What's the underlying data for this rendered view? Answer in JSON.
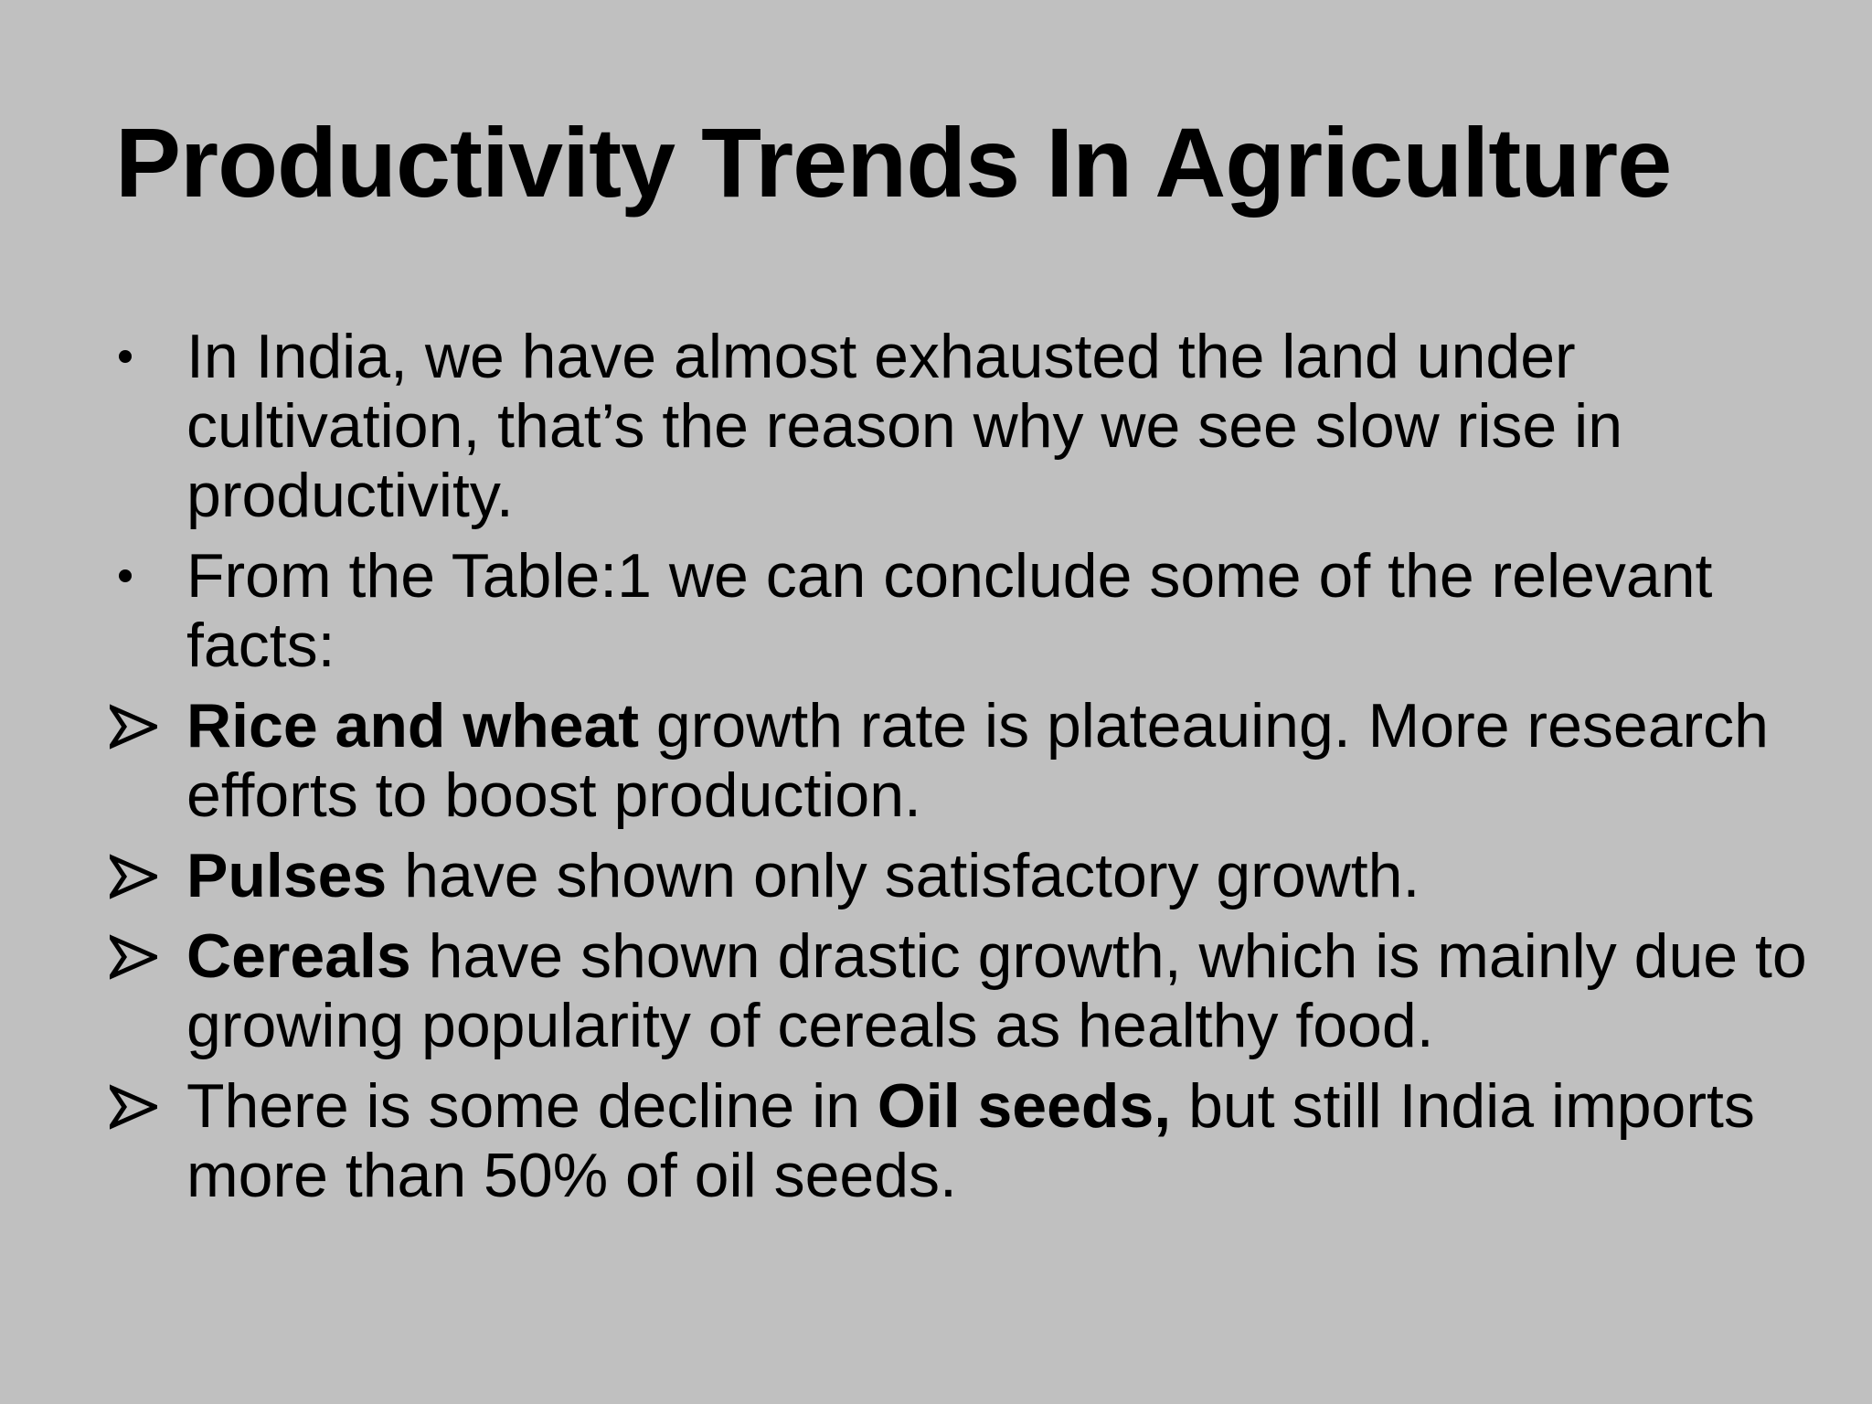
{
  "slide": {
    "title": "Productivity Trends In Agriculture",
    "items": [
      {
        "marker": "bullet-icon",
        "text": "In India, we have almost exhausted the land under cultivation, that’s the reason why we see slow rise in productivity."
      },
      {
        "marker": "bullet-icon",
        "text": "From the Table:1 we can conclude some of the relevant facts:"
      },
      {
        "marker": "arrow-bullet-icon",
        "bold": "Rice and wheat",
        "text": " growth rate is plateauing. More research efforts to boost production."
      },
      {
        "marker": "arrow-bullet-icon",
        "bold": "Pulses",
        "text": " have shown only satisfactory growth."
      },
      {
        "marker": "arrow-bullet-icon",
        "bold": "Cereals",
        "text": " have shown drastic growth, which is mainly due to growing popularity of cereals as healthy food."
      },
      {
        "marker": "arrow-bullet-icon",
        "pre": "There is some decline in ",
        "bold": "Oil seeds,",
        "text": " but still India imports more than 50% of oil seeds."
      }
    ]
  }
}
